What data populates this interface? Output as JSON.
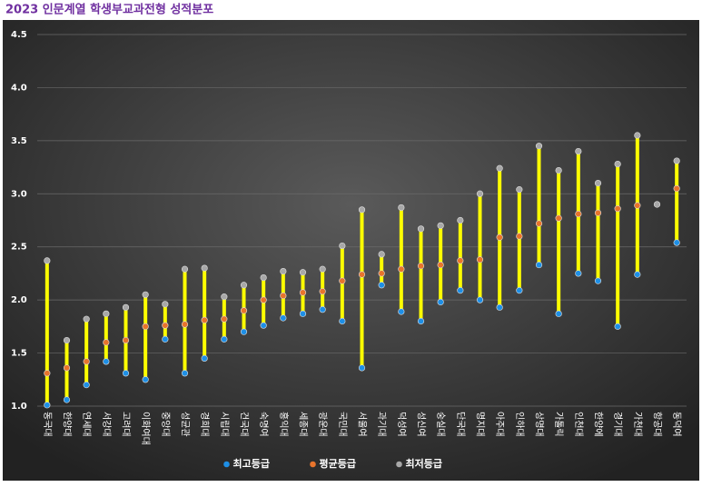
{
  "chart_data": {
    "type": "hilo",
    "title": "2023 인문계열 학생부교과전형 성적분포",
    "categories": [
      "동국대",
      "한양대",
      "연세대",
      "서강대",
      "고려대",
      "이화여대",
      "중앙대",
      "성균관",
      "경희대",
      "시립대",
      "건국대",
      "숙명여",
      "홍익대",
      "세종대",
      "광운대",
      "국민대",
      "서울여",
      "과기대",
      "덕성여",
      "성신여",
      "숭실대",
      "단국대",
      "명지대",
      "아주대",
      "인하대",
      "상명대",
      "가톨릭",
      "인천대",
      "한양에",
      "경기대",
      "가천대",
      "항공대",
      "동덕여"
    ],
    "series": [
      {
        "name": "최고등급",
        "color": "#1e8fe6",
        "values": [
          1.01,
          1.06,
          1.2,
          1.42,
          1.31,
          1.25,
          1.63,
          1.31,
          1.45,
          1.63,
          1.7,
          1.76,
          1.83,
          1.87,
          1.91,
          1.8,
          1.36,
          2.14,
          1.89,
          1.8,
          1.98,
          2.09,
          2.0,
          1.93,
          2.09,
          2.33,
          1.87,
          2.25,
          2.18,
          1.75,
          2.24,
          null,
          2.54
        ]
      },
      {
        "name": "평균등급",
        "color": "#e8742c",
        "values": [
          1.31,
          1.36,
          1.42,
          1.6,
          1.62,
          1.75,
          1.76,
          1.77,
          1.81,
          1.82,
          1.9,
          2.0,
          2.04,
          2.07,
          2.08,
          2.18,
          2.24,
          2.25,
          2.29,
          2.32,
          2.33,
          2.37,
          2.38,
          2.59,
          2.6,
          2.72,
          2.77,
          2.81,
          2.82,
          2.86,
          2.89,
          null,
          3.05
        ]
      },
      {
        "name": "최저등급",
        "color": "#a8a8a8",
        "values": [
          2.37,
          1.62,
          1.82,
          1.87,
          1.93,
          2.05,
          1.96,
          2.29,
          2.3,
          2.03,
          2.14,
          2.21,
          2.27,
          2.26,
          2.29,
          2.51,
          2.85,
          2.43,
          2.87,
          2.67,
          2.7,
          2.75,
          3.0,
          3.24,
          3.04,
          3.45,
          3.22,
          3.4,
          3.1,
          3.28,
          3.55,
          2.9,
          3.31
        ]
      }
    ],
    "range_color": "#ffff00",
    "ylim": [
      1.0,
      4.5
    ],
    "yticks": [
      {
        "value": 1.0,
        "label": "1.0"
      },
      1.5,
      {
        "value": 2.0,
        "label": "2.0"
      },
      2.5,
      {
        "value": 3.0,
        "label": "3.0"
      },
      3.5,
      {
        "value": 4.0,
        "label": "4.0"
      },
      4.5
    ],
    "grid": true,
    "legend": "bottom"
  }
}
